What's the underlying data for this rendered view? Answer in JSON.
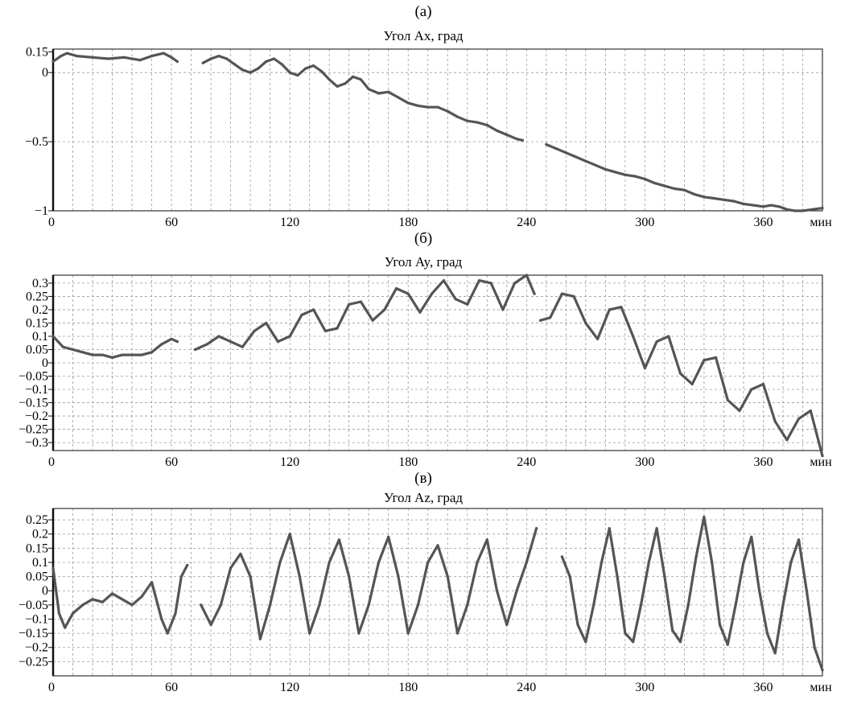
{
  "chart_data": [
    {
      "type": "line",
      "panel_label": "(а)",
      "title": "Угол Ax, град",
      "x_unit": "мин",
      "xlim": [
        0,
        390
      ],
      "ylim": [
        -1.0,
        0.17
      ],
      "x_ticks": [
        0,
        60,
        120,
        180,
        240,
        300,
        360
      ],
      "y_ticks": [
        0.15,
        0,
        -0.5,
        -1
      ],
      "y_tick_labels": [
        "0.15",
        "0",
        "−0.5",
        "−1"
      ],
      "grid": "vertical dashed every 10 min; horizontal at 0 and −0.5",
      "color": "#555555",
      "series": [
        {
          "x": [
            0,
            4,
            7,
            12,
            20,
            28,
            36,
            44,
            50,
            56,
            60,
            63
          ],
          "y": [
            0.08,
            0.12,
            0.14,
            0.12,
            0.11,
            0.1,
            0.11,
            0.09,
            0.12,
            0.14,
            0.11,
            0.08
          ]
        },
        {
          "x": [
            76,
            80,
            84,
            88,
            92,
            96,
            100,
            104,
            108,
            112,
            116,
            120,
            124,
            128,
            132,
            136,
            140,
            144,
            148,
            152,
            156,
            160,
            165,
            170,
            175,
            180,
            185,
            190,
            195,
            200,
            205,
            210,
            215,
            220,
            225,
            230,
            235,
            238
          ],
          "y": [
            0.07,
            0.1,
            0.12,
            0.1,
            0.06,
            0.02,
            0.0,
            0.03,
            0.08,
            0.1,
            0.06,
            0.0,
            -0.02,
            0.03,
            0.05,
            0.01,
            -0.05,
            -0.1,
            -0.08,
            -0.03,
            -0.05,
            -0.12,
            -0.15,
            -0.14,
            -0.18,
            -0.22,
            -0.24,
            -0.25,
            -0.25,
            -0.28,
            -0.32,
            -0.35,
            -0.36,
            -0.38,
            -0.42,
            -0.45,
            -0.48,
            -0.49
          ]
        },
        {
          "x": [
            250,
            255,
            260,
            265,
            270,
            275,
            280,
            285,
            290,
            295,
            300,
            305,
            310,
            315,
            320,
            325,
            330,
            335,
            340,
            345,
            350,
            355,
            360,
            364,
            368,
            372,
            376,
            380,
            385,
            390
          ],
          "y": [
            -0.52,
            -0.55,
            -0.58,
            -0.61,
            -0.64,
            -0.67,
            -0.7,
            -0.72,
            -0.74,
            -0.75,
            -0.77,
            -0.8,
            -0.82,
            -0.84,
            -0.85,
            -0.88,
            -0.9,
            -0.91,
            -0.92,
            -0.93,
            -0.95,
            -0.96,
            -0.97,
            -0.96,
            -0.97,
            -0.99,
            -1.0,
            -1.0,
            -0.99,
            -0.98
          ]
        }
      ]
    },
    {
      "type": "line",
      "panel_label": "(б)",
      "title": "Угол Ay, град",
      "x_unit": "мин",
      "xlim": [
        0,
        390
      ],
      "ylim": [
        -0.33,
        0.33
      ],
      "x_ticks": [
        0,
        60,
        120,
        180,
        240,
        300,
        360
      ],
      "y_ticks": [
        0.3,
        0.25,
        0.2,
        0.15,
        0.1,
        0.05,
        0,
        -0.05,
        -0.1,
        -0.15,
        -0.2,
        -0.25,
        -0.3
      ],
      "y_tick_labels": [
        "0.3",
        "0.25",
        "0.2",
        "0.15",
        "0.1",
        "0.05",
        "0",
        "−0.05",
        "−0.1",
        "−0.15",
        "−0.2",
        "−0.25",
        "−0.3"
      ],
      "grid": "dashed, vertical every 10 min, horizontal every 0.05",
      "color": "#555555",
      "series": [
        {
          "x": [
            0,
            5,
            10,
            15,
            20,
            25,
            30,
            35,
            40,
            45,
            50,
            55,
            60,
            63
          ],
          "y": [
            0.1,
            0.06,
            0.05,
            0.04,
            0.03,
            0.03,
            0.02,
            0.03,
            0.03,
            0.03,
            0.04,
            0.07,
            0.09,
            0.08
          ]
        },
        {
          "x": [
            72,
            78,
            84,
            90,
            96,
            102,
            108,
            114,
            120,
            126,
            132,
            138,
            144,
            150,
            156,
            162,
            168,
            174,
            180,
            186,
            192,
            198,
            204,
            210,
            216,
            222,
            228,
            234,
            240,
            244
          ],
          "y": [
            0.05,
            0.07,
            0.1,
            0.08,
            0.06,
            0.12,
            0.15,
            0.08,
            0.1,
            0.18,
            0.2,
            0.12,
            0.13,
            0.22,
            0.23,
            0.16,
            0.2,
            0.28,
            0.26,
            0.19,
            0.26,
            0.31,
            0.24,
            0.22,
            0.31,
            0.3,
            0.2,
            0.3,
            0.33,
            0.26
          ]
        },
        {
          "x": [
            247,
            252,
            258,
            264,
            270,
            276,
            282,
            288,
            294,
            300,
            306,
            312,
            318,
            324,
            330,
            336,
            342,
            348,
            354,
            360,
            366,
            372,
            378,
            384,
            390
          ],
          "y": [
            0.16,
            0.17,
            0.26,
            0.25,
            0.15,
            0.09,
            0.2,
            0.21,
            0.1,
            -0.02,
            0.08,
            0.1,
            -0.04,
            -0.08,
            0.01,
            0.02,
            -0.14,
            -0.18,
            -0.1,
            -0.08,
            -0.22,
            -0.29,
            -0.21,
            -0.18,
            -0.35
          ]
        }
      ]
    },
    {
      "type": "line",
      "panel_label": "(в)",
      "title": "Угол Az, град",
      "x_unit": "мин",
      "xlim": [
        0,
        390
      ],
      "ylim": [
        -0.3,
        0.29
      ],
      "x_ticks": [
        0,
        60,
        120,
        180,
        240,
        300,
        360
      ],
      "y_ticks": [
        0.25,
        0.2,
        0.15,
        0.1,
        0.05,
        0,
        -0.05,
        -0.1,
        -0.15,
        -0.2,
        -0.25
      ],
      "y_tick_labels": [
        "0.25",
        "0.2",
        "0.15",
        "0.1",
        "0.05",
        "0",
        "−0.05",
        "−0.1",
        "−0.15",
        "−0.2",
        "−0.25"
      ],
      "grid": "dashed, vertical every 10 min, horizontal every 0.05",
      "color": "#555555",
      "series": [
        {
          "x": [
            0,
            3,
            6,
            10,
            15,
            20,
            25,
            30,
            35,
            40,
            45,
            50,
            55,
            58,
            62,
            65,
            68
          ],
          "y": [
            0.08,
            -0.08,
            -0.13,
            -0.08,
            -0.05,
            -0.03,
            -0.04,
            -0.01,
            -0.03,
            -0.05,
            -0.02,
            0.03,
            -0.1,
            -0.15,
            -0.08,
            0.05,
            0.09
          ]
        },
        {
          "x": [
            75,
            80,
            85,
            90,
            95,
            100,
            105,
            110,
            115,
            120,
            125,
            130,
            135,
            140,
            145,
            150,
            155,
            160,
            165,
            170,
            175,
            180,
            185,
            190,
            195,
            200,
            205,
            210,
            215,
            220,
            225,
            230,
            235,
            240,
            245
          ],
          "y": [
            -0.05,
            -0.12,
            -0.05,
            0.08,
            0.13,
            0.05,
            -0.17,
            -0.05,
            0.1,
            0.2,
            0.05,
            -0.15,
            -0.05,
            0.1,
            0.18,
            0.05,
            -0.15,
            -0.05,
            0.1,
            0.19,
            0.05,
            -0.15,
            -0.05,
            0.1,
            0.16,
            0.05,
            -0.15,
            -0.05,
            0.1,
            0.18,
            0.0,
            -0.12,
            0.0,
            0.1,
            0.22
          ]
        },
        {
          "x": [
            258,
            262,
            266,
            270,
            274,
            278,
            282,
            286,
            290,
            294,
            298,
            302,
            306,
            310,
            314,
            318,
            322,
            326,
            330,
            334,
            338,
            342,
            346,
            350,
            354,
            358,
            362,
            366,
            370,
            374,
            378,
            382,
            386,
            390
          ],
          "y": [
            0.12,
            0.05,
            -0.12,
            -0.18,
            -0.05,
            0.1,
            0.22,
            0.05,
            -0.15,
            -0.18,
            -0.05,
            0.1,
            0.22,
            0.05,
            -0.14,
            -0.18,
            -0.05,
            0.12,
            0.26,
            0.1,
            -0.12,
            -0.19,
            -0.05,
            0.1,
            0.19,
            0.0,
            -0.15,
            -0.22,
            -0.05,
            0.1,
            0.18,
            0.0,
            -0.2,
            -0.28
          ]
        }
      ]
    }
  ]
}
